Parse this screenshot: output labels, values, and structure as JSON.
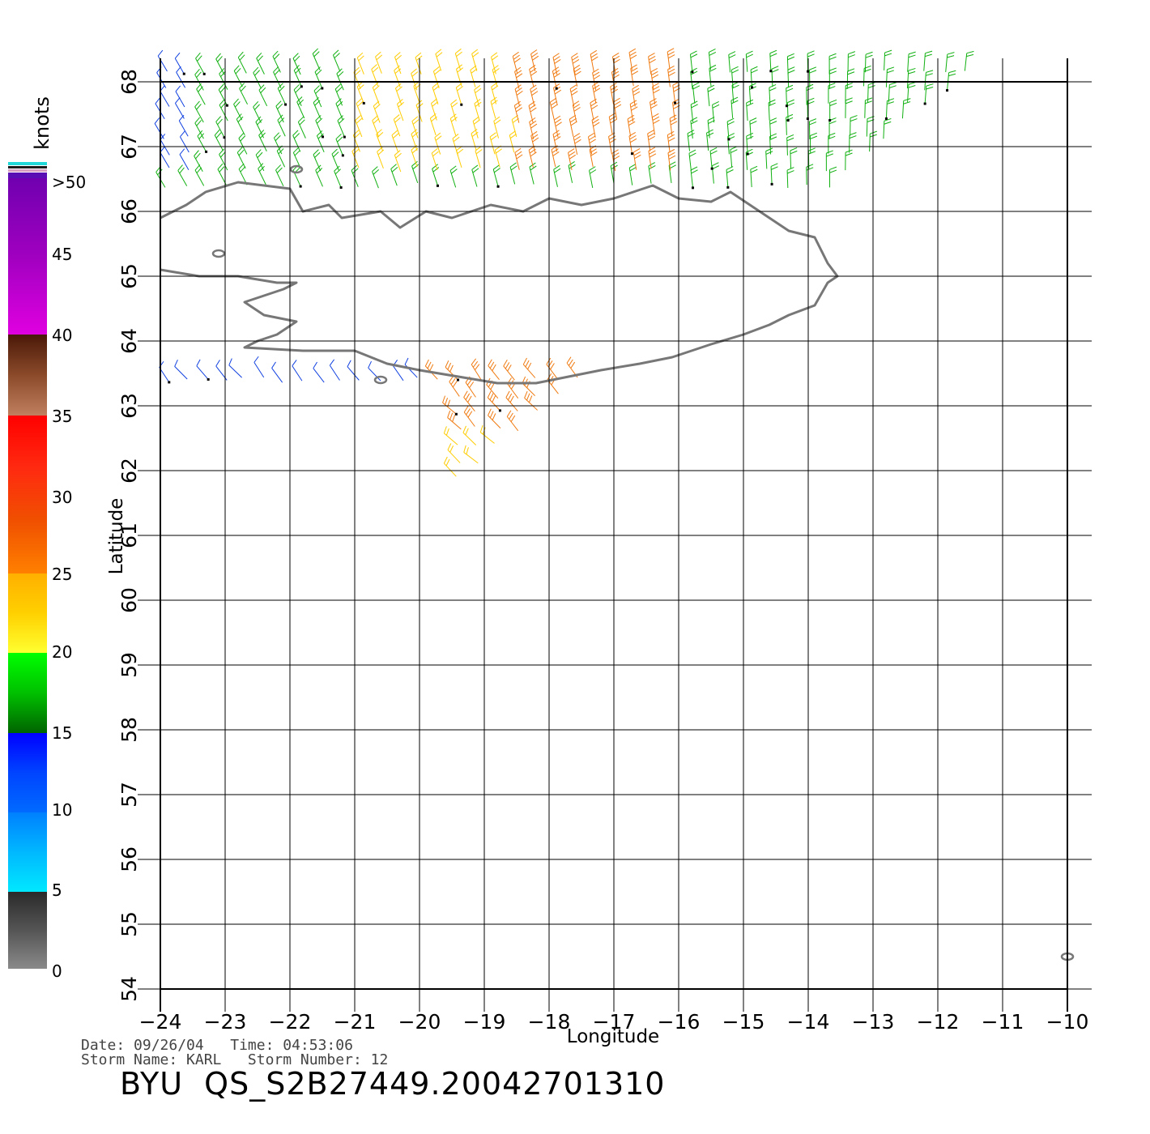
{
  "legend": {
    "units": "knots",
    "labels": [
      ">50",
      "45",
      "40",
      "35",
      "30",
      "25",
      "20",
      "15",
      "10",
      "5",
      "0"
    ],
    "colors": {
      "gt50": "#5a0fb4",
      "40_50": [
        "#e000e0",
        "#a000c0",
        "#7000b0"
      ],
      "35_40": [
        "#c08060",
        "#8b4a2a",
        "#4a1808"
      ],
      "30_35": [
        "#ff0000",
        "#ff2a10",
        "#e82a00"
      ],
      "25_30": [
        "#ff8000",
        "#f05000",
        "#e83000"
      ],
      "20_25": [
        "#ffff30",
        "#ffd000",
        "#ffb000"
      ],
      "15_20": [
        "#00ff00",
        "#00c000",
        "#006400"
      ],
      "10_15": [
        "#0000ff",
        "#0044ff",
        "#006aff"
      ],
      "5_10": [
        "#00e8ff",
        "#00b8ff",
        "#0080ff"
      ],
      "0_5": [
        "#8a8a8a",
        "#555555",
        "#2a2a2a"
      ]
    }
  },
  "axes": {
    "x_label": "Longitude",
    "y_label": "Latitude",
    "x_ticks": [
      "-24",
      "-23",
      "-22",
      "-21",
      "-20",
      "-19",
      "-18",
      "-17",
      "-16",
      "-15",
      "-14",
      "-13",
      "-12",
      "-11",
      "-10"
    ],
    "y_ticks": [
      "54",
      "55",
      "56",
      "57",
      "58",
      "59",
      "60",
      "61",
      "62",
      "63",
      "64",
      "65",
      "66",
      "67",
      "68"
    ],
    "x_range": [
      -24,
      -10
    ],
    "y_range": [
      54,
      68
    ]
  },
  "info": {
    "date_line": "Date: 09/26/04   Time: 04:53:06",
    "storm_line": "Storm Name: KARL   Storm Number: 12",
    "product": "BYU  QS_S2B27449.20042701310"
  },
  "map": {
    "land_outline_color": "#777777",
    "grid_color": "#000000"
  }
}
